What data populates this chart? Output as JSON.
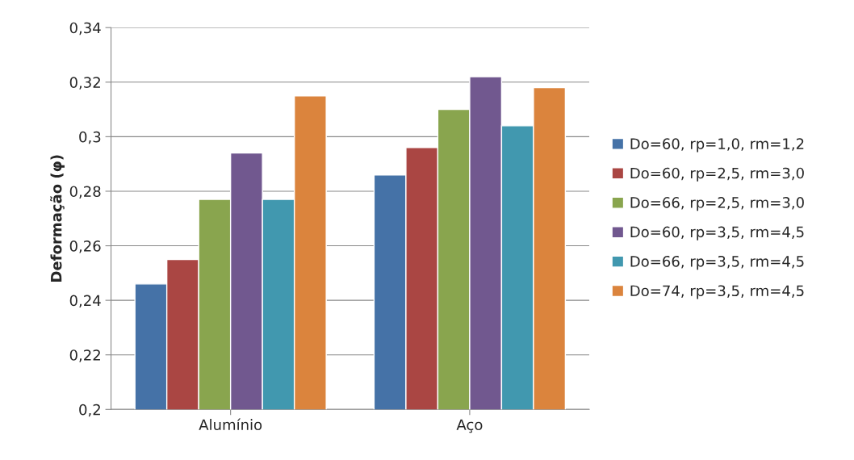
{
  "chart_data": {
    "type": "bar",
    "ylabel": "Deformação (φ)",
    "categories": [
      "Alumínio",
      "Aço"
    ],
    "series": [
      {
        "name": "Do=60, rp=1,0, rm=1,2",
        "color": "#4572a7",
        "values": [
          0.246,
          0.286
        ]
      },
      {
        "name": "Do=60, rp=2,5, rm=3,0",
        "color": "#aa4643",
        "values": [
          0.255,
          0.296
        ]
      },
      {
        "name": "Do=66, rp=2,5, rm=3,0",
        "color": "#89a54e",
        "values": [
          0.277,
          0.31
        ]
      },
      {
        "name": "Do=60, rp=3,5, rm=4,5",
        "color": "#71588f",
        "values": [
          0.294,
          0.322
        ]
      },
      {
        "name": "Do=66, rp=3,5, rm=4,5",
        "color": "#4198af",
        "values": [
          0.277,
          0.304
        ]
      },
      {
        "name": "Do=74, rp=3,5, rm=4,5",
        "color": "#db843d",
        "values": [
          0.315,
          0.318
        ]
      }
    ],
    "ylim": [
      0.2,
      0.34
    ],
    "yticks": [
      {
        "value": 0.2,
        "label": "0,2"
      },
      {
        "value": 0.22,
        "label": "0,22"
      },
      {
        "value": 0.24,
        "label": "0,24"
      },
      {
        "value": 0.26,
        "label": "0,26"
      },
      {
        "value": 0.28,
        "label": "0,28"
      },
      {
        "value": 0.3,
        "label": "0,3"
      },
      {
        "value": 0.32,
        "label": "0,32"
      },
      {
        "value": 0.34,
        "label": "0,34"
      }
    ],
    "grid": "y",
    "legend": "right"
  }
}
